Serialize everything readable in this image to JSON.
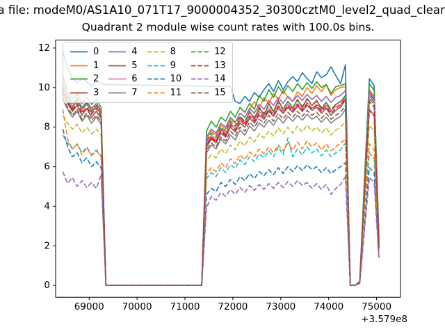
{
  "titles": {
    "figure_title": "a file: modeM0/AS1A10_071T17_9000004352_30300cztM0_level2_quad_clean",
    "axes_title": "Quadrant 2 module wise count rates with 100.0s bins."
  },
  "chart_data": {
    "type": "line",
    "title": "Quadrant 2 module wise count rates with 100.0s bins.",
    "xlabel": "",
    "ylabel": "",
    "x_offset_label": "+3.579e8",
    "x_note": "x values are time in seconds relative to the +3.579e8 axis offset; bins of 100.0 s",
    "bin_seconds": 100.0,
    "x0": 68450,
    "dx": 100,
    "xlim": [
      68300,
      75500
    ],
    "ylim": [
      -0.6,
      12.4
    ],
    "xticks": [
      69000,
      70000,
      71000,
      72000,
      73000,
      74000,
      75000
    ],
    "yticks": [
      0,
      2,
      4,
      6,
      8,
      10,
      12
    ],
    "grid": false,
    "legend_position": "upper left",
    "legend_columns": 4,
    "series": [
      {
        "label": "0",
        "color": "#1f77b4",
        "style": "solid",
        "y": [
          11.8,
          11.0,
          10.5,
          10.25,
          10.45,
          10.3,
          10.1,
          10.35,
          10.2,
          10.15,
          null,
          null,
          null,
          null,
          null,
          null,
          null,
          null,
          null,
          null,
          null,
          null,
          null,
          null,
          null,
          null,
          null,
          null,
          null,
          null,
          null,
          null,
          null,
          null,
          null,
          10.05,
          9.3,
          9.2,
          9.55,
          9.3,
          9.75,
          9.5,
          9.9,
          10.2,
          9.8,
          10.35,
          9.9,
          10.3,
          10.55,
          10.3,
          10.75,
          10.45,
          10.2,
          10.8,
          10.5,
          10.65,
          11.05,
          10.6,
          10.2,
          11.15,
          0,
          0,
          0.2,
          5.5,
          10.45,
          10.1,
          2.3
        ]
      },
      {
        "label": "1",
        "color": "#ff7f0e",
        "style": "solid",
        "y": [
          10.3,
          9.5,
          9.0,
          9.3,
          8.9,
          9.2,
          8.85,
          9.1,
          8.8,
          0,
          0,
          0,
          0,
          0,
          0,
          0,
          0,
          0,
          0,
          0,
          0,
          0,
          0,
          0,
          0,
          0,
          0,
          0,
          0,
          0,
          7.4,
          7.8,
          7.6,
          8.1,
          7.9,
          8.4,
          8.2,
          8.7,
          8.5,
          8.9,
          9.3,
          8.95,
          9.5,
          9.2,
          9.7,
          9.4,
          9.85,
          9.5,
          9.3,
          9.8,
          9.55,
          10.0,
          9.7,
          10.1,
          9.8,
          10.15,
          9.6,
          9.9,
          10.0,
          10.05,
          0,
          0,
          0.2,
          5.2,
          9.9,
          9.55,
          2.5
        ]
      },
      {
        "label": "2",
        "color": "#2ca02c",
        "style": "solid",
        "y": [
          10.6,
          9.8,
          9.4,
          9.7,
          9.2,
          9.5,
          9.15,
          9.4,
          9.0,
          0,
          0,
          0,
          0,
          0,
          0,
          0,
          0,
          0,
          0,
          0,
          0,
          0,
          0,
          0,
          0,
          0,
          0,
          0,
          0,
          0,
          7.8,
          8.3,
          8.0,
          8.5,
          8.3,
          8.8,
          8.5,
          9.0,
          8.75,
          9.2,
          8.9,
          9.6,
          9.3,
          9.9,
          9.5,
          10.05,
          9.7,
          10.1,
          9.8,
          10.2,
          9.9,
          10.25,
          9.95,
          10.3,
          10.0,
          10.15,
          9.7,
          10.05,
          10.1,
          10.2,
          0,
          0,
          0.2,
          5.3,
          10.2,
          9.85,
          2.4
        ]
      },
      {
        "label": "3",
        "color": "#d62728",
        "style": "solid",
        "y": [
          9.9,
          9.3,
          8.9,
          9.5,
          8.8,
          9.25,
          8.7,
          9.05,
          8.6,
          0,
          0,
          0,
          0,
          0,
          0,
          0,
          0,
          0,
          0,
          0,
          0,
          0,
          0,
          0,
          0,
          0,
          0,
          0,
          0,
          0,
          7.1,
          7.5,
          7.3,
          7.9,
          7.6,
          8.2,
          7.9,
          8.5,
          8.2,
          8.8,
          8.4,
          9.0,
          8.6,
          9.2,
          8.8,
          9.35,
          8.9,
          9.3,
          8.95,
          9.4,
          9.0,
          9.45,
          9.1,
          9.35,
          8.9,
          9.25,
          8.8,
          9.15,
          9.3,
          9.5,
          0,
          0,
          0.2,
          5.0,
          9.7,
          9.35,
          2.2
        ]
      },
      {
        "label": "4",
        "color": "#9467bd",
        "style": "solid",
        "y": [
          10.1,
          9.6,
          9.2,
          9.45,
          9.0,
          9.3,
          8.95,
          9.2,
          8.85,
          0,
          0,
          0,
          0,
          0,
          0,
          0,
          0,
          0,
          0,
          0,
          0,
          0,
          0,
          0,
          0,
          0,
          0,
          0,
          0,
          0,
          7.5,
          7.9,
          7.7,
          8.2,
          8.0,
          8.5,
          8.25,
          8.7,
          8.5,
          8.95,
          8.7,
          9.15,
          8.9,
          9.35,
          9.1,
          9.5,
          9.2,
          9.55,
          9.3,
          9.6,
          9.35,
          9.65,
          9.4,
          9.6,
          9.3,
          9.55,
          9.25,
          9.5,
          9.6,
          9.85,
          0,
          0,
          0.2,
          5.1,
          9.8,
          9.45,
          2.1
        ]
      },
      {
        "label": "5",
        "color": "#8c564b",
        "style": "solid",
        "y": [
          9.7,
          9.2,
          8.8,
          9.1,
          8.6,
          8.95,
          8.5,
          8.8,
          8.45,
          0,
          0,
          0,
          0,
          0,
          0,
          0,
          0,
          0,
          0,
          0,
          0,
          0,
          0,
          0,
          0,
          0,
          0,
          0,
          0,
          0,
          7.0,
          7.4,
          7.2,
          7.7,
          7.5,
          8.0,
          7.75,
          8.2,
          8.0,
          8.45,
          8.2,
          8.6,
          8.4,
          8.8,
          8.55,
          8.95,
          8.7,
          9.0,
          8.75,
          9.05,
          8.8,
          9.1,
          8.85,
          9.0,
          8.7,
          8.95,
          8.6,
          8.85,
          9.0,
          9.4,
          0,
          0,
          0.2,
          4.9,
          9.6,
          9.25,
          2.0
        ]
      },
      {
        "label": "6",
        "color": "#e377c2",
        "style": "solid",
        "y": [
          9.95,
          9.4,
          9.0,
          9.35,
          8.85,
          9.15,
          8.75,
          9.0,
          8.65,
          0,
          0,
          0,
          0,
          0,
          0,
          0,
          0,
          0,
          0,
          0,
          0,
          0,
          0,
          0,
          0,
          0,
          0,
          0,
          0,
          0,
          7.2,
          7.6,
          7.4,
          7.95,
          7.7,
          8.15,
          7.9,
          8.4,
          8.15,
          8.6,
          8.35,
          8.8,
          8.55,
          8.95,
          8.7,
          9.1,
          8.8,
          9.15,
          8.85,
          9.2,
          8.9,
          9.25,
          8.95,
          9.15,
          8.85,
          9.1,
          8.8,
          9.05,
          9.15,
          9.55,
          0,
          0,
          0.2,
          5.0,
          9.65,
          9.3,
          2.05
        ]
      },
      {
        "label": "7",
        "color": "#7f7f7f",
        "style": "solid",
        "y": [
          9.4,
          8.9,
          8.5,
          8.8,
          8.3,
          8.6,
          8.2,
          8.5,
          8.15,
          0,
          0,
          0,
          0,
          0,
          0,
          0,
          0,
          0,
          0,
          0,
          0,
          0,
          0,
          0,
          0,
          0,
          0,
          0,
          0,
          0,
          6.7,
          7.1,
          6.9,
          7.4,
          7.15,
          7.6,
          7.35,
          7.85,
          7.6,
          8.05,
          7.8,
          8.2,
          8.0,
          8.35,
          8.1,
          8.5,
          8.2,
          8.55,
          8.3,
          8.6,
          8.35,
          8.65,
          8.4,
          8.55,
          8.25,
          8.5,
          8.2,
          8.4,
          8.55,
          8.9,
          0,
          0,
          0.2,
          4.5,
          8.9,
          8.6,
          1.9
        ]
      },
      {
        "label": "8",
        "color": "#bcbd22",
        "style": "dashed",
        "y": [
          8.6,
          8.2,
          7.9,
          8.15,
          7.7,
          8.0,
          7.65,
          7.9,
          7.6,
          0,
          0,
          0,
          0,
          0,
          0,
          0,
          0,
          0,
          0,
          0,
          0,
          0,
          0,
          0,
          0,
          0,
          0,
          0,
          0,
          0,
          6.3,
          6.6,
          6.45,
          6.9,
          6.65,
          7.1,
          6.85,
          7.3,
          7.05,
          7.5,
          7.25,
          7.65,
          7.45,
          7.8,
          7.55,
          7.95,
          7.65,
          8.0,
          7.7,
          8.05,
          7.75,
          8.1,
          7.8,
          8.0,
          7.7,
          7.95,
          7.6,
          7.85,
          8.0,
          8.3,
          0,
          0,
          0.15,
          4.2,
          8.1,
          7.8,
          1.8
        ]
      },
      {
        "label": "9",
        "color": "#17becf",
        "style": "dashed",
        "y": [
          7.6,
          7.2,
          6.9,
          7.15,
          6.7,
          7.0,
          6.6,
          6.85,
          6.55,
          0,
          0,
          0,
          0,
          0,
          0,
          0,
          0,
          0,
          0,
          0,
          0,
          0,
          0,
          0,
          0,
          0,
          0,
          0,
          0,
          0,
          5.4,
          5.7,
          5.5,
          5.95,
          5.7,
          6.1,
          5.9,
          6.35,
          6.1,
          6.5,
          6.25,
          6.65,
          6.45,
          6.8,
          6.5,
          7.0,
          6.6,
          7.45,
          6.5,
          6.9,
          6.6,
          7.0,
          6.7,
          6.9,
          6.55,
          6.85,
          6.5,
          6.7,
          6.85,
          7.2,
          0,
          0,
          0.15,
          3.5,
          6.7,
          6.4,
          1.5
        ]
      },
      {
        "label": "10",
        "color": "#1f77b4",
        "style": "dashed",
        "y": [
          7.9,
          7.0,
          6.5,
          6.7,
          6.2,
          6.45,
          6.0,
          6.25,
          5.95,
          0,
          0,
          0,
          0,
          0,
          0,
          0,
          0,
          0,
          0,
          0,
          0,
          0,
          0,
          0,
          0,
          0,
          0,
          0,
          0,
          0,
          4.6,
          4.9,
          4.75,
          5.2,
          5.0,
          5.35,
          5.1,
          5.5,
          5.3,
          5.65,
          5.4,
          5.75,
          5.55,
          5.85,
          5.6,
          5.95,
          5.65,
          6.0,
          5.75,
          6.05,
          5.8,
          6.1,
          5.85,
          6.0,
          5.7,
          5.95,
          5.65,
          5.85,
          6.0,
          6.2,
          0,
          0,
          0.1,
          3.1,
          5.95,
          5.7,
          1.4
        ]
      },
      {
        "label": "11",
        "color": "#ff7f0e",
        "style": "dashed",
        "y": [
          8.9,
          7.4,
          6.9,
          7.15,
          6.6,
          6.95,
          6.55,
          6.8,
          6.5,
          0,
          0,
          0,
          0,
          0,
          0,
          0,
          0,
          0,
          0,
          0,
          0,
          0,
          0,
          0,
          0,
          0,
          0,
          0,
          0,
          0,
          5.6,
          5.95,
          5.75,
          6.2,
          5.95,
          6.4,
          6.15,
          6.6,
          6.35,
          6.75,
          6.5,
          6.9,
          6.65,
          7.0,
          6.7,
          7.1,
          6.8,
          7.2,
          6.85,
          7.25,
          6.9,
          7.3,
          7.0,
          7.2,
          6.85,
          7.15,
          6.8,
          7.0,
          7.2,
          7.4,
          0,
          0,
          0.15,
          3.7,
          7.15,
          6.85,
          1.6
        ]
      },
      {
        "label": "12",
        "color": "#2ca02c",
        "style": "dashed",
        "y": [
          10.0,
          9.45,
          9.05,
          9.4,
          8.9,
          9.2,
          8.8,
          9.1,
          8.7,
          0,
          0,
          0,
          0,
          0,
          0,
          0,
          0,
          0,
          0,
          0,
          0,
          0,
          0,
          0,
          0,
          0,
          0,
          0,
          0,
          0,
          7.3,
          7.7,
          7.5,
          8.0,
          7.8,
          8.3,
          8.05,
          8.55,
          8.3,
          8.75,
          8.5,
          8.9,
          8.7,
          9.1,
          8.8,
          9.25,
          8.9,
          9.3,
          9.0,
          9.35,
          9.05,
          9.4,
          9.1,
          9.3,
          9.0,
          9.25,
          8.9,
          9.15,
          9.3,
          9.6,
          0,
          0,
          0.2,
          4.9,
          9.45,
          9.15,
          2.0
        ]
      },
      {
        "label": "13",
        "color": "#d62728",
        "style": "dashed",
        "y": [
          9.8,
          9.25,
          8.85,
          9.2,
          8.7,
          9.0,
          8.65,
          8.95,
          8.55,
          0,
          0,
          0,
          0,
          0,
          0,
          0,
          0,
          0,
          0,
          0,
          0,
          0,
          0,
          0,
          0,
          0,
          0,
          0,
          0,
          0,
          7.05,
          7.45,
          7.25,
          7.8,
          7.55,
          8.1,
          7.85,
          8.35,
          8.1,
          8.55,
          8.3,
          8.7,
          8.5,
          8.9,
          8.6,
          9.05,
          8.7,
          9.1,
          8.8,
          9.15,
          8.85,
          9.2,
          8.9,
          9.1,
          8.8,
          9.05,
          8.7,
          8.95,
          9.1,
          9.45,
          0,
          0,
          0.2,
          4.85,
          9.3,
          9.0,
          1.95
        ]
      },
      {
        "label": "14",
        "color": "#9467bd",
        "style": "dashed",
        "y": [
          5.75,
          5.15,
          5.45,
          5.0,
          5.3,
          4.95,
          5.2,
          4.9,
          5.6,
          0,
          0,
          0,
          0,
          0,
          0,
          0,
          0,
          0,
          0,
          0,
          0,
          0,
          0,
          0,
          0,
          0,
          0,
          0,
          0,
          0,
          3.9,
          4.5,
          4.3,
          4.7,
          4.5,
          4.85,
          4.6,
          4.95,
          4.7,
          5.05,
          4.8,
          5.1,
          4.85,
          5.15,
          4.9,
          5.2,
          4.95,
          5.25,
          5.0,
          5.3,
          5.05,
          5.2,
          4.9,
          5.15,
          4.85,
          5.1,
          4.6,
          4.9,
          5.1,
          5.5,
          0,
          0,
          0.1,
          2.8,
          5.45,
          5.2,
          1.3
        ]
      },
      {
        "label": "15",
        "color": "#8c564b",
        "style": "dashed",
        "y": [
          9.5,
          9.0,
          8.6,
          8.9,
          8.4,
          8.7,
          8.35,
          8.6,
          8.3,
          0,
          0,
          0,
          0,
          0,
          0,
          0,
          0,
          0,
          0,
          0,
          0,
          0,
          0,
          0,
          0,
          0,
          0,
          0,
          0,
          0,
          6.85,
          7.2,
          7.0,
          7.5,
          7.3,
          7.8,
          7.55,
          8.0,
          7.8,
          8.25,
          8.0,
          8.4,
          8.2,
          8.6,
          8.3,
          8.7,
          8.4,
          8.75,
          8.5,
          8.8,
          8.55,
          8.85,
          8.6,
          8.75,
          8.45,
          8.7,
          8.4,
          8.6,
          8.75,
          9.1,
          0,
          0,
          0.2,
          4.6,
          8.85,
          8.55,
          1.85
        ]
      }
    ]
  }
}
